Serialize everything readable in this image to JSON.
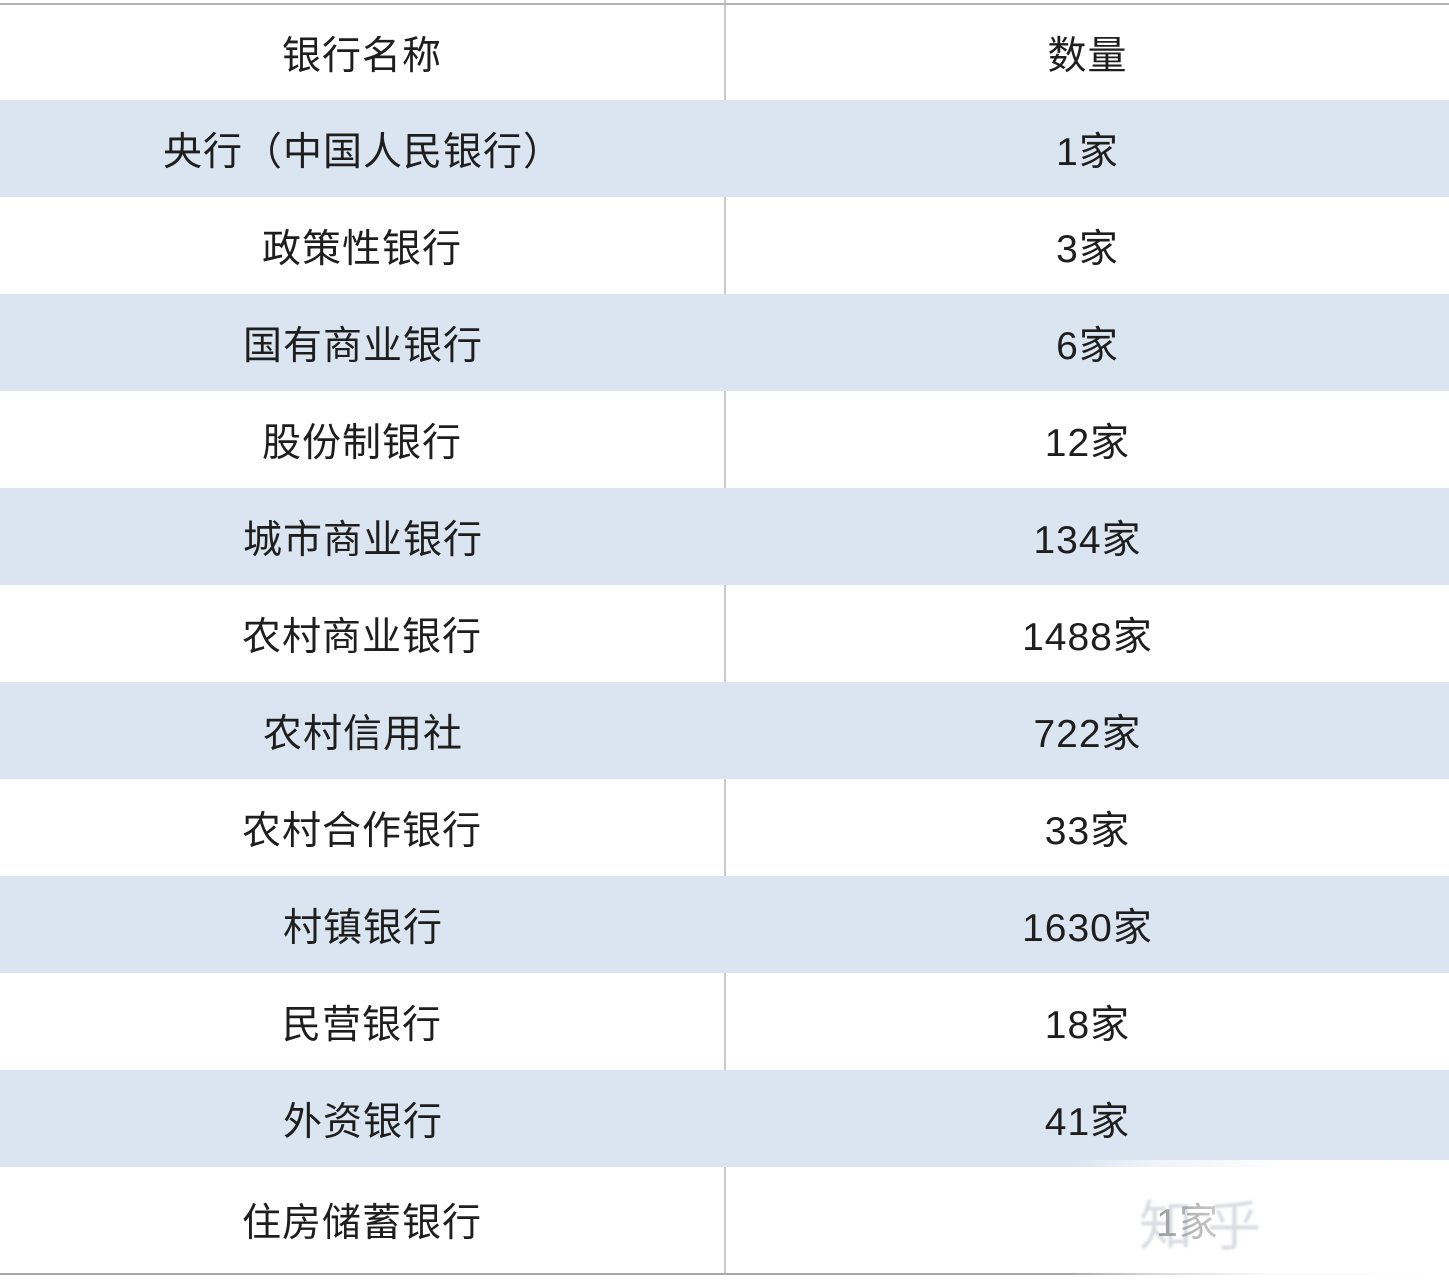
{
  "colors": {
    "banded_row": "#dbe5f1",
    "plain_row": "#ffffff",
    "border_top": "#b5b5b5",
    "border_bottom": "#a9a9a9",
    "column_divider": "#c9c9c9",
    "text": "#1e1e1e"
  },
  "table": {
    "columns": [
      "银行名称",
      "数量"
    ],
    "rows": [
      {
        "name": "央行（中国人民银行）",
        "count": "1家"
      },
      {
        "name": "政策性银行",
        "count": "3家"
      },
      {
        "name": "国有商业银行",
        "count": "6家"
      },
      {
        "name": "股份制银行",
        "count": "12家"
      },
      {
        "name": "城市商业银行",
        "count": "134家"
      },
      {
        "name": "农村商业银行",
        "count": "1488家"
      },
      {
        "name": "农村信用社",
        "count": "722家"
      },
      {
        "name": "农村合作银行",
        "count": "33家"
      },
      {
        "name": "村镇银行",
        "count": "1630家"
      },
      {
        "name": "民营银行",
        "count": "18家"
      },
      {
        "name": "外资银行",
        "count": "41家"
      },
      {
        "name": "住房储蓄银行",
        "count": "1家"
      }
    ]
  },
  "watermark": {
    "remnant_text": "知乎"
  },
  "chart_data": {
    "type": "table",
    "title": "",
    "columns": [
      "银行名称",
      "数量"
    ],
    "rows": [
      [
        "央行（中国人民银行）",
        "1家"
      ],
      [
        "政策性银行",
        "3家"
      ],
      [
        "国有商业银行",
        "6家"
      ],
      [
        "股份制银行",
        "12家"
      ],
      [
        "城市商业银行",
        "134家"
      ],
      [
        "农村商业银行",
        "1488家"
      ],
      [
        "农村信用社",
        "722家"
      ],
      [
        "农村合作银行",
        "33家"
      ],
      [
        "村镇银行",
        "1630家"
      ],
      [
        "民营银行",
        "18家"
      ],
      [
        "外资银行",
        "41家"
      ],
      [
        "住房储蓄银行",
        "1家"
      ]
    ],
    "counts_numeric": [
      1,
      3,
      6,
      12,
      134,
      1488,
      722,
      33,
      1630,
      18,
      41,
      1
    ],
    "layout": {
      "banding": "alternating rows starting banded-blue under header",
      "alignment": "all cells centered",
      "grid": "vertical divider between columns visible only on white rows; horizontal rules at table top and bottom only"
    }
  }
}
